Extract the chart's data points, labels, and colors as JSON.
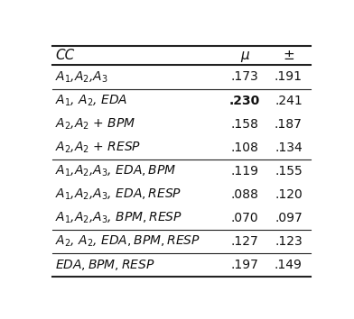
{
  "rows": [
    {
      "cc": "$A_1$,$A_2$,$A_3$",
      "mu": ".173",
      "pm": ".191",
      "bold_mu": false,
      "group_above": true
    },
    {
      "cc": "$A_1$, $A_2$, $EDA$",
      "mu": ".230",
      "pm": ".241",
      "bold_mu": true,
      "group_above": true
    },
    {
      "cc": "$A_2$,$A_2$ + $BPM$",
      "mu": ".158",
      "pm": ".187",
      "bold_mu": false,
      "group_above": false
    },
    {
      "cc": "$A_2$,$A_2$ + $RESP$",
      "mu": ".108",
      "pm": ".134",
      "bold_mu": false,
      "group_above": false
    },
    {
      "cc": "$A_1$,$A_2$,$A_3$, $EDA,BPM$",
      "mu": ".119",
      "pm": ".155",
      "bold_mu": false,
      "group_above": true
    },
    {
      "cc": "$A_1$,$A_2$,$A_3$, $EDA,RESP$",
      "mu": ".088",
      "pm": ".120",
      "bold_mu": false,
      "group_above": false
    },
    {
      "cc": "$A_1$,$A_2$,$A_3$, $BPM,RESP$",
      "mu": ".070",
      "pm": ".097",
      "bold_mu": false,
      "group_above": false
    },
    {
      "cc": "$A_2$, $A_2$, $EDA, BPM, RESP$",
      "mu": ".127",
      "pm": ".123",
      "bold_mu": false,
      "group_above": true
    },
    {
      "cc": "$EDA, BPM, RESP$",
      "mu": ".197",
      "pm": ".149",
      "bold_mu": false,
      "group_above": true
    }
  ],
  "header": [
    "CC",
    "μ",
    "±"
  ],
  "text_color": "#111111",
  "line_color": "#222222",
  "header_fontsize": 11,
  "row_fontsize": 10,
  "fig_width": 3.92,
  "fig_height": 3.54
}
